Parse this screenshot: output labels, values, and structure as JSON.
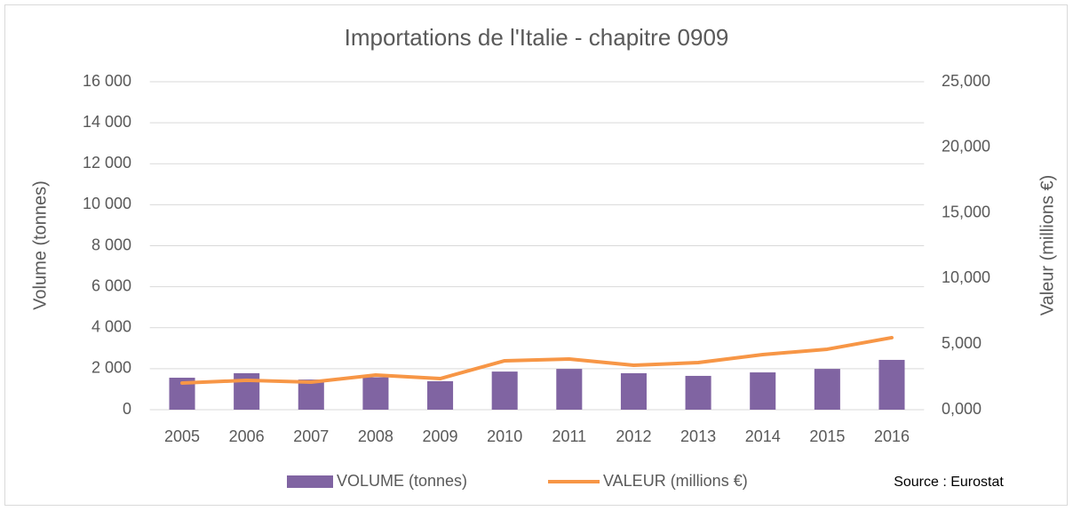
{
  "chart_data": {
    "type": "bar_line",
    "title": "Importations de l'Italie - chapitre 0909",
    "y_label": "Volume (tonnes)",
    "y2_label": "Valeur (millions €)",
    "source": "Source : Eurostat",
    "categories": [
      "2005",
      "2006",
      "2007",
      "2008",
      "2009",
      "2010",
      "2011",
      "2012",
      "2013",
      "2014",
      "2015",
      "2016"
    ],
    "series": [
      {
        "name": "VOLUME (tonnes)",
        "type": "bar",
        "color": "#8064a2",
        "axis": "y",
        "values": [
          1560,
          1780,
          1470,
          1580,
          1390,
          1860,
          1990,
          1780,
          1650,
          1820,
          1990,
          2430
        ]
      },
      {
        "name": "VALEUR (millions €)",
        "type": "line",
        "color": "#f79646",
        "axis": "y2",
        "values": [
          2030,
          2240,
          2100,
          2640,
          2370,
          3730,
          3860,
          3390,
          3590,
          4200,
          4610,
          5490
        ]
      }
    ],
    "ylim": [
      0,
      16000
    ],
    "yticks": [
      0,
      {
        "value": 2000,
        "label": "2 000"
      },
      {
        "value": 4000,
        "label": "4 000"
      },
      {
        "value": 6000,
        "label": "6 000"
      },
      {
        "value": 8000,
        "label": "8 000"
      },
      {
        "value": 10000,
        "label": "10 000"
      },
      {
        "value": 12000,
        "label": "12 000"
      },
      {
        "value": 14000,
        "label": "14 000"
      },
      {
        "value": 16000,
        "label": "16 000"
      }
    ],
    "y2lim": [
      0,
      25000
    ],
    "y2ticks": [
      {
        "value": 0,
        "label": "0,000"
      },
      {
        "value": 5000,
        "label": "5,000"
      },
      {
        "value": 10000,
        "label": "10,000"
      },
      {
        "value": 15000,
        "label": "15,000"
      },
      {
        "value": 20000,
        "label": "20,000"
      },
      {
        "value": 25000,
        "label": "25,000"
      }
    ],
    "grid": true,
    "legend": "bottom"
  }
}
